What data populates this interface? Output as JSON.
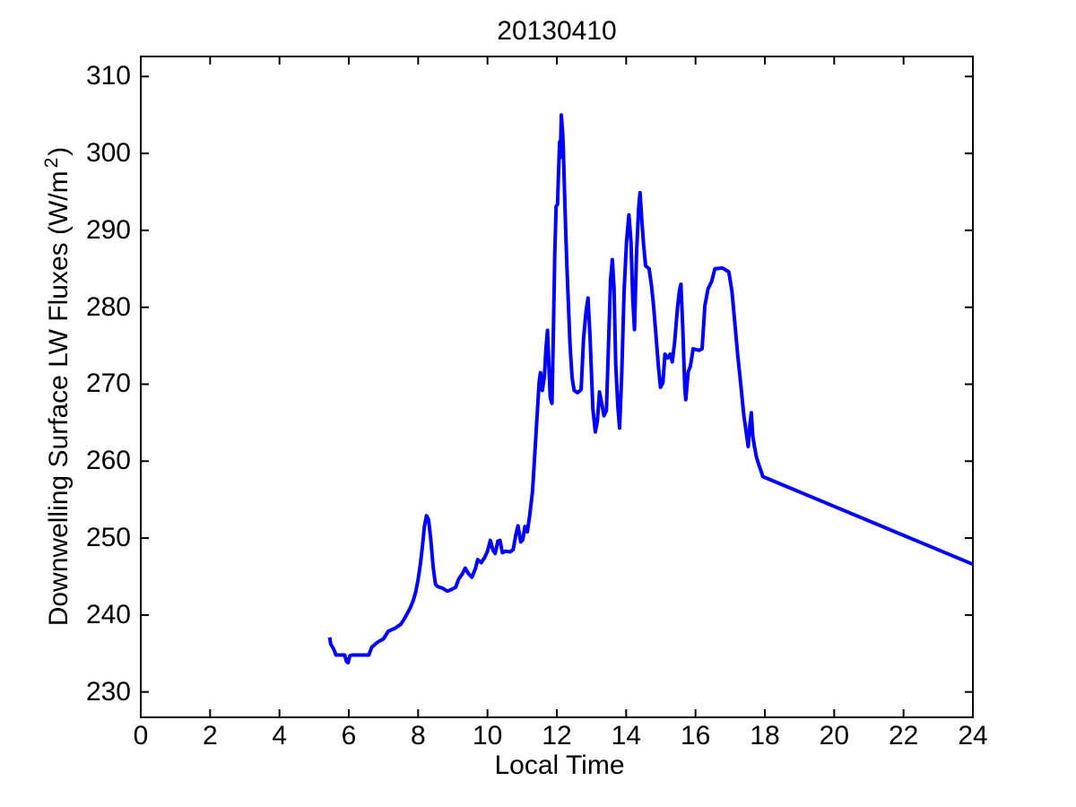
{
  "figure": {
    "title": "20130410",
    "xlabel": "Local Time",
    "ylabel_main": "Downwelling Surface LW Fluxes (W/m",
    "ylabel_sup": "2",
    "ylabel_end": ")"
  },
  "chart_data": {
    "type": "line",
    "title": "20130410",
    "xlabel": "Local Time",
    "ylabel": "Downwelling Surface LW Fluxes (W/m^2)",
    "xlim": [
      0,
      24
    ],
    "ylim": [
      226.7,
      312.6
    ],
    "x_ticks": [
      0,
      2,
      4,
      6,
      8,
      10,
      12,
      14,
      16,
      18,
      20,
      22,
      24
    ],
    "y_ticks": [
      230,
      240,
      250,
      260,
      270,
      280,
      290,
      300,
      310
    ],
    "grid": false,
    "box": true,
    "line_color": "#0000FF",
    "line_width": 4,
    "axis_color": "#000000",
    "series": [
      {
        "name": "downwelling-surface-lw-flux",
        "points": [
          [
            5.45,
            237.1
          ],
          [
            5.48,
            236.2
          ],
          [
            5.56,
            235.6
          ],
          [
            5.63,
            234.8
          ],
          [
            5.88,
            234.8
          ],
          [
            5.93,
            234.0
          ],
          [
            5.98,
            233.8
          ],
          [
            6.03,
            234.7
          ],
          [
            6.1,
            234.8
          ],
          [
            6.58,
            234.8
          ],
          [
            6.66,
            235.8
          ],
          [
            6.84,
            236.5
          ],
          [
            7.0,
            236.9
          ],
          [
            7.14,
            237.9
          ],
          [
            7.34,
            238.3
          ],
          [
            7.5,
            238.8
          ],
          [
            7.6,
            239.5
          ],
          [
            7.7,
            240.3
          ],
          [
            7.78,
            241.0
          ],
          [
            7.86,
            241.9
          ],
          [
            7.93,
            243.0
          ],
          [
            8.0,
            244.6
          ],
          [
            8.06,
            246.5
          ],
          [
            8.12,
            248.8
          ],
          [
            8.18,
            251.5
          ],
          [
            8.24,
            252.9
          ],
          [
            8.3,
            252.4
          ],
          [
            8.36,
            250.0
          ],
          [
            8.44,
            246.0
          ],
          [
            8.5,
            244.0
          ],
          [
            8.56,
            243.7
          ],
          [
            8.7,
            243.5
          ],
          [
            8.84,
            243.1
          ],
          [
            8.95,
            243.3
          ],
          [
            9.08,
            243.6
          ],
          [
            9.17,
            244.7
          ],
          [
            9.27,
            245.3
          ],
          [
            9.36,
            246.1
          ],
          [
            9.45,
            245.4
          ],
          [
            9.55,
            244.9
          ],
          [
            9.65,
            246.0
          ],
          [
            9.72,
            247.2
          ],
          [
            9.82,
            246.8
          ],
          [
            9.92,
            247.5
          ],
          [
            10.0,
            248.3
          ],
          [
            10.08,
            249.7
          ],
          [
            10.16,
            248.4
          ],
          [
            10.22,
            248.0
          ],
          [
            10.3,
            249.6
          ],
          [
            10.36,
            249.7
          ],
          [
            10.43,
            248.1
          ],
          [
            10.52,
            248.3
          ],
          [
            10.65,
            248.2
          ],
          [
            10.74,
            248.5
          ],
          [
            10.82,
            250.5
          ],
          [
            10.88,
            251.6
          ],
          [
            10.96,
            249.5
          ],
          [
            11.02,
            249.8
          ],
          [
            11.08,
            251.5
          ],
          [
            11.15,
            250.8
          ],
          [
            11.22,
            253.0
          ],
          [
            11.3,
            256.1
          ],
          [
            11.38,
            262.0
          ],
          [
            11.44,
            266.5
          ],
          [
            11.49,
            270.3
          ],
          [
            11.53,
            271.5
          ],
          [
            11.58,
            269.2
          ],
          [
            11.64,
            271.0
          ],
          [
            11.69,
            274.8
          ],
          [
            11.73,
            277.0
          ],
          [
            11.77,
            272.5
          ],
          [
            11.81,
            268.2
          ],
          [
            11.86,
            267.5
          ],
          [
            11.9,
            276.4
          ],
          [
            11.94,
            286.9
          ],
          [
            11.98,
            293.1
          ],
          [
            12.02,
            293.4
          ],
          [
            12.05,
            297.5
          ],
          [
            12.08,
            301.5
          ],
          [
            12.1,
            299.5
          ],
          [
            12.13,
            305.0
          ],
          [
            12.17,
            302.5
          ],
          [
            12.19,
            300.4
          ],
          [
            12.22,
            295.4
          ],
          [
            12.26,
            289.2
          ],
          [
            12.29,
            285.5
          ],
          [
            12.33,
            280.7
          ],
          [
            12.38,
            275.2
          ],
          [
            12.44,
            270.9
          ],
          [
            12.5,
            269.2
          ],
          [
            12.6,
            268.9
          ],
          [
            12.7,
            269.3
          ],
          [
            12.77,
            275.9
          ],
          [
            12.84,
            279.4
          ],
          [
            12.9,
            281.2
          ],
          [
            12.96,
            276.0
          ],
          [
            13.04,
            266.8
          ],
          [
            13.11,
            263.8
          ],
          [
            13.17,
            265.2
          ],
          [
            13.23,
            269.0
          ],
          [
            13.29,
            267.6
          ],
          [
            13.36,
            265.9
          ],
          [
            13.43,
            266.6
          ],
          [
            13.49,
            275.0
          ],
          [
            13.55,
            283.5
          ],
          [
            13.6,
            286.2
          ],
          [
            13.65,
            282.5
          ],
          [
            13.7,
            272.5
          ],
          [
            13.76,
            267.0
          ],
          [
            13.81,
            264.3
          ],
          [
            13.87,
            271.0
          ],
          [
            13.94,
            282.0
          ],
          [
            14.01,
            288.5
          ],
          [
            14.08,
            292.0
          ],
          [
            14.14,
            288.5
          ],
          [
            14.19,
            281.0
          ],
          [
            14.24,
            277.1
          ],
          [
            14.3,
            287.0
          ],
          [
            14.36,
            293.0
          ],
          [
            14.4,
            294.9
          ],
          [
            14.45,
            291.5
          ],
          [
            14.5,
            288.2
          ],
          [
            14.56,
            285.4
          ],
          [
            14.66,
            285.0
          ],
          [
            14.73,
            282.8
          ],
          [
            14.79,
            280.2
          ],
          [
            14.86,
            276.3
          ],
          [
            14.93,
            272.3
          ],
          [
            14.99,
            269.6
          ],
          [
            15.06,
            270.2
          ],
          [
            15.12,
            273.9
          ],
          [
            15.2,
            273.4
          ],
          [
            15.27,
            273.9
          ],
          [
            15.33,
            272.9
          ],
          [
            15.4,
            275.6
          ],
          [
            15.48,
            280.0
          ],
          [
            15.54,
            282.3
          ],
          [
            15.58,
            283.0
          ],
          [
            15.63,
            277.5
          ],
          [
            15.69,
            269.5
          ],
          [
            15.72,
            268.0
          ],
          [
            15.79,
            271.6
          ],
          [
            15.85,
            272.3
          ],
          [
            15.93,
            274.6
          ],
          [
            16.1,
            274.4
          ],
          [
            16.19,
            274.6
          ],
          [
            16.27,
            280.2
          ],
          [
            16.36,
            282.4
          ],
          [
            16.46,
            283.3
          ],
          [
            16.56,
            285.0
          ],
          [
            16.78,
            285.1
          ],
          [
            16.96,
            284.6
          ],
          [
            17.05,
            282.1
          ],
          [
            17.13,
            278.1
          ],
          [
            17.22,
            273.7
          ],
          [
            17.31,
            269.8
          ],
          [
            17.39,
            266.1
          ],
          [
            17.47,
            263.5
          ],
          [
            17.52,
            261.9
          ],
          [
            17.57,
            264.8
          ],
          [
            17.61,
            266.3
          ],
          [
            17.65,
            263.3
          ],
          [
            17.7,
            261.9
          ],
          [
            17.76,
            260.5
          ],
          [
            17.83,
            259.5
          ],
          [
            17.9,
            258.6
          ],
          [
            17.94,
            258.0
          ],
          [
            24.0,
            246.6
          ]
        ]
      }
    ]
  }
}
